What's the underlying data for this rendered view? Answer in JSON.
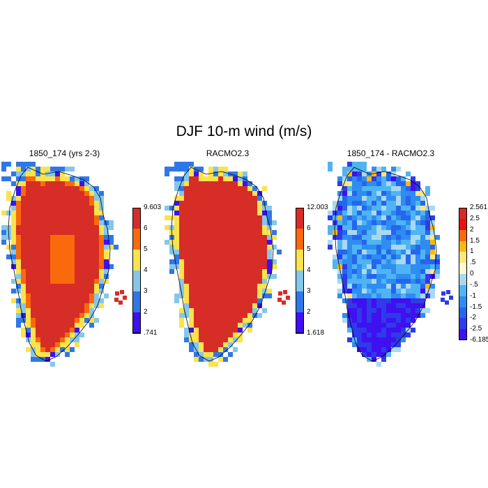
{
  "title": "DJF 10-m wind (m/s)",
  "panels": [
    {
      "id": "model",
      "title": "1850_174 (yrs 2-3)",
      "colorbar": {
        "max_label": "9.603",
        "min_label": ".741",
        "levels": [
          "6",
          "5",
          "4",
          "3",
          "2"
        ],
        "colors": [
          "#d62d27",
          "#fa6a0c",
          "#fbe34b",
          "#84c7eb",
          "#2f77e9",
          "#3f10f0"
        ]
      }
    },
    {
      "id": "racmo",
      "title": "RACMO2.3",
      "colorbar": {
        "max_label": "12.003",
        "min_label": "1.618",
        "levels": [
          "6",
          "5",
          "4",
          "3",
          "2"
        ],
        "colors": [
          "#d62d27",
          "#fa6a0c",
          "#fbe34b",
          "#84c7eb",
          "#2f77e9",
          "#3f10f0"
        ]
      }
    },
    {
      "id": "difference",
      "title": "1850_174 - RACMO2.3",
      "colorbar": {
        "max_label": "2.561",
        "min_label": "-6.185",
        "levels": [
          "2.5",
          "2",
          "1.5",
          "1",
          ".5",
          "0",
          "-.5",
          "-1",
          "-1.5",
          "-2",
          "-2.5"
        ],
        "colors": [
          "#d42b27",
          "#e9120d",
          "#fa6a0c",
          "#fbb80e",
          "#fde77d",
          "#fdfad0",
          "#a9d9f2",
          "#4fb4f4",
          "#2f8cf0",
          "#2466ee",
          "#2f3bea",
          "#3f10f0"
        ]
      }
    }
  ]
}
